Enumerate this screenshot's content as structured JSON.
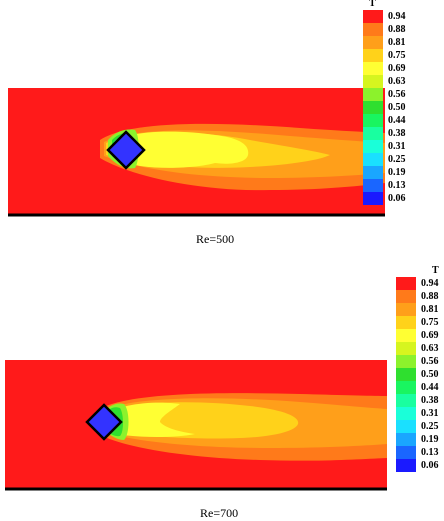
{
  "colors": {
    "levels": [
      "#1a1aff",
      "#1a66ff",
      "#1aa6ff",
      "#1ae0ff",
      "#1affd9",
      "#19ffa0",
      "#19f560",
      "#2fdf2f",
      "#8cf22c",
      "#d6f51f",
      "#ffff33",
      "#ffd21a",
      "#ff9f1a",
      "#ff7a1a",
      "#ff1a1a"
    ],
    "obstacle": "#3333ff",
    "background_field": "#ff1a1a"
  },
  "panels": [
    {
      "legend": {
        "title": "T",
        "labels": [
          "0.94",
          "0.88",
          "0.81",
          "0.75",
          "0.69",
          "0.63",
          "0.56",
          "0.50",
          "0.44",
          "0.38",
          "0.31",
          "0.25",
          "0.19",
          "0.13",
          "0.06"
        ]
      },
      "caption": "Re=500"
    },
    {
      "legend": {
        "title": "T",
        "labels": [
          "0.94",
          "0.88",
          "0.81",
          "0.75",
          "0.69",
          "0.63",
          "0.56",
          "0.50",
          "0.44",
          "0.38",
          "0.31",
          "0.25",
          "0.19",
          "0.13",
          "0.06"
        ]
      },
      "caption": "Re=700"
    }
  ]
}
